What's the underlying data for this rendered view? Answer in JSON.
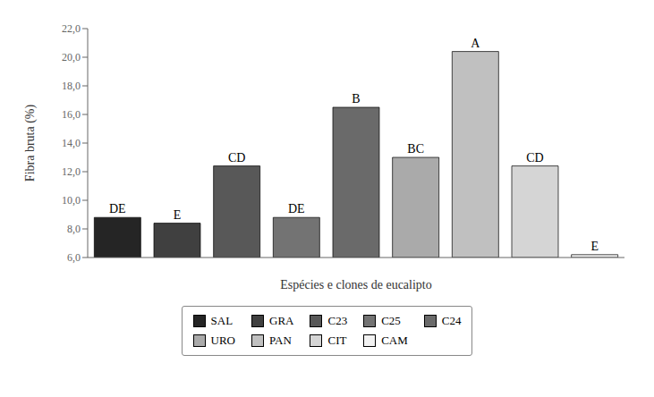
{
  "chart_data": {
    "type": "bar",
    "categories": [
      "SAL",
      "GRA",
      "C23",
      "C25",
      "C24",
      "URO",
      "PAN",
      "CIT",
      "CAM"
    ],
    "values": [
      8.8,
      8.4,
      12.4,
      8.8,
      16.5,
      13.0,
      20.4,
      12.4,
      6.2
    ],
    "colors": [
      "#252525",
      "#404040",
      "#585858",
      "#737373",
      "#6a6a6a",
      "#aaaaaa",
      "#c0c0c0",
      "#d5d5d5",
      "#f2f2f2"
    ],
    "annotations": [
      {
        "x": "SAL",
        "text": "DE"
      },
      {
        "x": "GRA",
        "text": "E"
      },
      {
        "x": "C23",
        "text": "CD"
      },
      {
        "x": "C25",
        "text": "DE"
      },
      {
        "x": "C24",
        "text": "B"
      },
      {
        "x": "URO",
        "text": "BC"
      },
      {
        "x": "PAN",
        "text": "A"
      },
      {
        "x": "CIT",
        "text": "CD"
      },
      {
        "x": "CAM",
        "text": "E"
      }
    ],
    "ylabel": "Fibra bruta (%)",
    "xlabel": "Espécies e clones de eucalipto",
    "ylim": [
      6.0,
      22.0
    ],
    "yticks": [
      {
        "value": 6.0,
        "label": "6,0"
      },
      {
        "value": 8.0,
        "label": "8,0"
      },
      {
        "value": 10.0,
        "label": "10,0"
      },
      {
        "value": 12.0,
        "label": "12,0"
      },
      {
        "value": 14.0,
        "label": "14,0"
      },
      {
        "value": 16.0,
        "label": "16,0"
      },
      {
        "value": 18.0,
        "label": "18,0"
      },
      {
        "value": 20.0,
        "label": "20,0"
      },
      {
        "value": 22.0,
        "label": "22,0"
      }
    ],
    "grid": false,
    "legend": "bottom",
    "tick_labels": "y"
  }
}
